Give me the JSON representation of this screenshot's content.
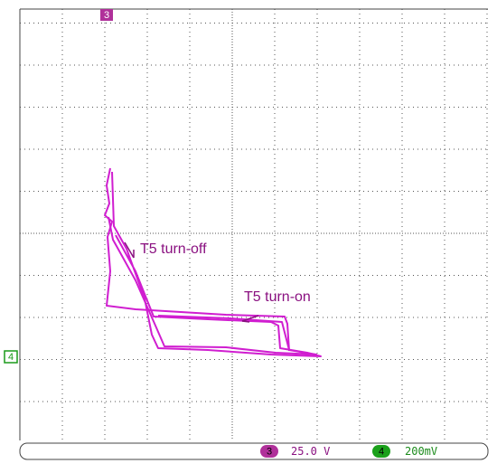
{
  "markers": {
    "top": "3",
    "left": "4"
  },
  "annotations": {
    "turn_off": "T5 turn-off",
    "turn_on": "T5 turn-on"
  },
  "status_bar": {
    "channel_a": {
      "badge": "3",
      "scale": "25.0 V"
    },
    "channel_b": {
      "badge": "4",
      "scale": "200mV"
    }
  }
}
